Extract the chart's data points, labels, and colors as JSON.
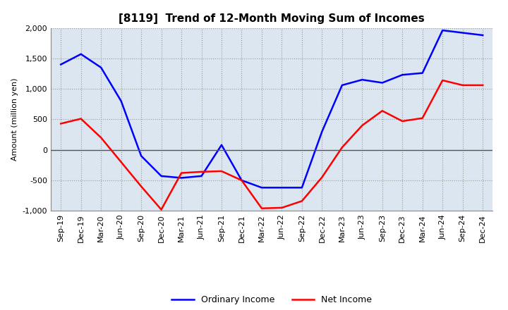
{
  "title": "[8119]  Trend of 12-Month Moving Sum of Incomes",
  "ylabel": "Amount (million yen)",
  "xlabels": [
    "Sep-19",
    "Dec-19",
    "Mar-20",
    "Jun-20",
    "Sep-20",
    "Dec-20",
    "Mar-21",
    "Jun-21",
    "Sep-21",
    "Dec-21",
    "Mar-22",
    "Jun-22",
    "Sep-22",
    "Dec-22",
    "Mar-23",
    "Jun-23",
    "Sep-23",
    "Dec-23",
    "Mar-24",
    "Jun-24",
    "Sep-24",
    "Dec-24"
  ],
  "ordinary_income": [
    1400,
    1570,
    1350,
    800,
    -100,
    -430,
    -460,
    -430,
    80,
    -500,
    -620,
    -620,
    -620,
    300,
    1060,
    1150,
    1100,
    1230,
    1260,
    1960,
    1920,
    1880
  ],
  "net_income": [
    430,
    510,
    200,
    -200,
    -600,
    -980,
    -380,
    -360,
    -350,
    -500,
    -960,
    -950,
    -840,
    -450,
    40,
    400,
    640,
    470,
    520,
    1140,
    1060,
    1060
  ],
  "ordinary_color": "#0000ff",
  "net_color": "#ff0000",
  "ylim": [
    -1000,
    2000
  ],
  "yticks": [
    -1000,
    -500,
    0,
    500,
    1000,
    1500,
    2000
  ],
  "background_color": "#ffffff",
  "plot_bg_color": "#dce6f0",
  "grid_color": "#aaaaaa",
  "title_fontsize": 11,
  "label_fontsize": 8,
  "tick_fontsize": 8
}
